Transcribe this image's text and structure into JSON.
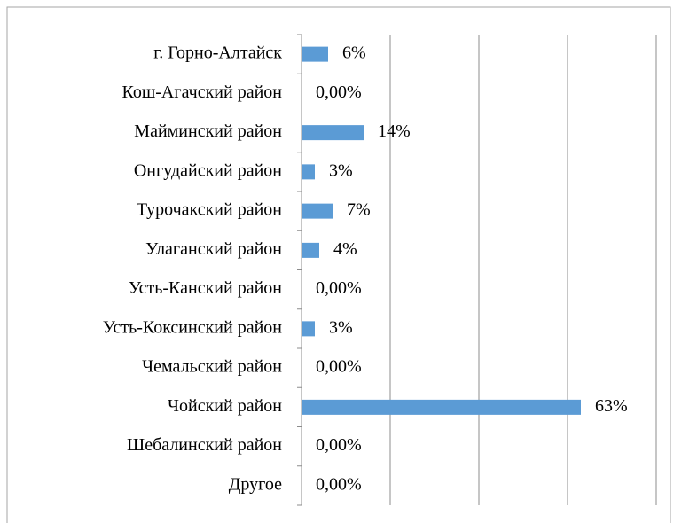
{
  "chart_data": {
    "type": "barh",
    "categories": [
      "г. Горно-Алтайск",
      "Кош-Агачский район",
      "Майминский район",
      "Онгудайский район",
      "Турочакский район",
      "Улаганский район",
      "Усть-Канский район",
      "Усть-Коксинский район",
      "Чемальский район",
      "Чойский район",
      "Шебалинский район",
      "Другое"
    ],
    "values": [
      6,
      0,
      14,
      3,
      7,
      4,
      0,
      3,
      0,
      63,
      0,
      0
    ],
    "value_labels": [
      "6%",
      "0,00%",
      "14%",
      "3%",
      "7%",
      "4%",
      "0,00%",
      "3%",
      "0,00%",
      "63%",
      "0,00%",
      "0,00%"
    ],
    "color": "#5b9bd5",
    "xlim": [
      0,
      80
    ],
    "xticks": [
      0,
      20,
      40,
      60,
      80
    ],
    "grid": true
  }
}
